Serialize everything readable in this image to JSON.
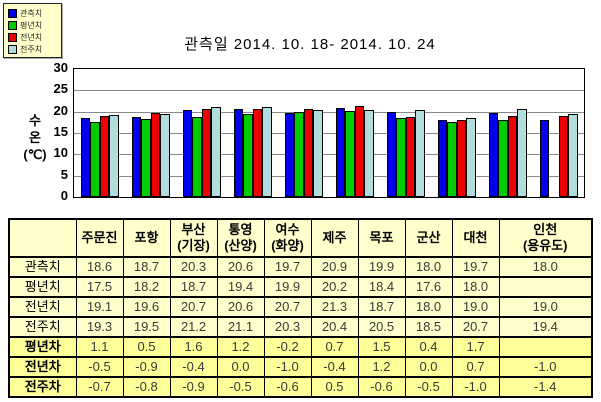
{
  "chart": {
    "title": "관측일 2014. 10. 18-  2014. 10. 24"
  },
  "chart_data": {
    "type": "bar",
    "title": "관측일 2014. 10. 18-  2014. 10. 24",
    "ylabel": "수온(℃)",
    "ylabel_lines": [
      "수",
      "온",
      "(℃)"
    ],
    "ylim": [
      0,
      30
    ],
    "y_ticks": [
      30,
      25,
      20,
      15,
      10,
      5,
      0
    ],
    "grid": true,
    "legend_position": "top-left",
    "categories": [
      "주문진",
      "포항",
      "부산(기장)",
      "통영(산양)",
      "여수(화양)",
      "제주",
      "목포",
      "군산",
      "대천",
      "인천(용유도)"
    ],
    "series": [
      {
        "name": "관측치",
        "color": "#0000EE",
        "values": [
          18.6,
          18.7,
          20.3,
          20.6,
          19.7,
          20.9,
          19.9,
          18.0,
          19.7,
          18.0
        ]
      },
      {
        "name": "평년치",
        "color": "#00CC00",
        "values": [
          17.5,
          18.2,
          18.7,
          19.4,
          19.9,
          20.2,
          18.4,
          17.6,
          18.0,
          null
        ]
      },
      {
        "name": "전년치",
        "color": "#EE0000",
        "values": [
          19.1,
          19.6,
          20.7,
          20.6,
          20.7,
          21.3,
          18.7,
          18.0,
          19.0,
          19.0
        ]
      },
      {
        "name": "전주치",
        "color": "#B2DCDC",
        "values": [
          19.3,
          19.5,
          21.2,
          21.1,
          20.3,
          20.4,
          20.5,
          18.5,
          20.7,
          19.4
        ]
      }
    ]
  },
  "table": {
    "columns": [
      "",
      "주문진",
      "포항",
      "부산\n(기장)",
      "통영\n(산양)",
      "여수\n(화양)",
      "제주",
      "목포",
      "군산",
      "대천",
      "인천\n(용유도)"
    ],
    "rows": [
      {
        "label": "관측치",
        "diff": false,
        "values": [
          "18.6",
          "18.7",
          "20.3",
          "20.6",
          "19.7",
          "20.9",
          "19.9",
          "18.0",
          "19.7",
          "18.0"
        ]
      },
      {
        "label": "평년치",
        "diff": false,
        "values": [
          "17.5",
          "18.2",
          "18.7",
          "19.4",
          "19.9",
          "20.2",
          "18.4",
          "17.6",
          "18.0",
          ""
        ]
      },
      {
        "label": "전년치",
        "diff": false,
        "values": [
          "19.1",
          "19.6",
          "20.7",
          "20.6",
          "20.7",
          "21.3",
          "18.7",
          "18.0",
          "19.0",
          "19.0"
        ]
      },
      {
        "label": "전주치",
        "diff": false,
        "values": [
          "19.3",
          "19.5",
          "21.2",
          "21.1",
          "20.3",
          "20.4",
          "20.5",
          "18.5",
          "20.7",
          "19.4"
        ]
      },
      {
        "label": "평년차",
        "diff": true,
        "values": [
          "1.1",
          "0.5",
          "1.6",
          "1.2",
          "-0.2",
          "0.7",
          "1.5",
          "0.4",
          "1.7",
          ""
        ]
      },
      {
        "label": "전년차",
        "diff": true,
        "values": [
          "-0.5",
          "-0.9",
          "-0.4",
          "0.0",
          "-1.0",
          "-0.4",
          "1.2",
          "0.0",
          "0.7",
          "-1.0"
        ]
      },
      {
        "label": "전주차",
        "diff": true,
        "values": [
          "-0.7",
          "-0.8",
          "-0.9",
          "-0.5",
          "-0.6",
          "0.5",
          "-0.6",
          "-0.5",
          "-1.0",
          "-1.4"
        ]
      }
    ]
  },
  "layout_colors": {
    "table_bg": "#FFFFCC",
    "table_diff_bg": "#FFFF99",
    "legend_bg": "#FFFFCC",
    "gridline": "#888888"
  }
}
